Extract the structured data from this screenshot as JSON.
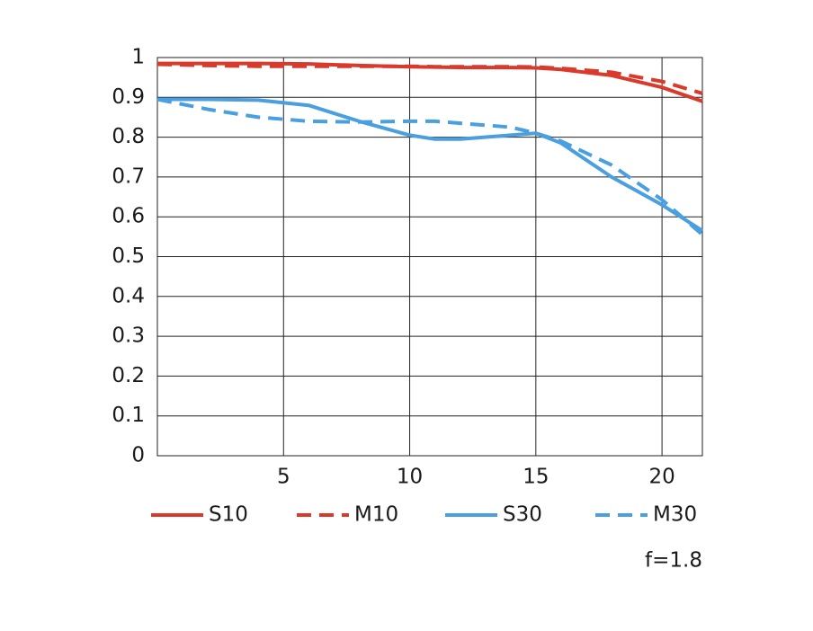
{
  "chart_data": {
    "type": "line",
    "x": [
      0,
      2,
      4,
      6,
      8,
      10,
      11,
      12,
      14,
      15,
      16,
      18,
      20,
      21.6
    ],
    "series": [
      {
        "name": "S10",
        "color": "#d93a2b",
        "linestyle": "solid",
        "values": [
          0.985,
          0.985,
          0.985,
          0.984,
          0.98,
          0.977,
          0.976,
          0.975,
          0.975,
          0.974,
          0.97,
          0.955,
          0.925,
          0.89
        ]
      },
      {
        "name": "M10",
        "color": "#d93a2b",
        "linestyle": "dashed",
        "values": [
          0.983,
          0.98,
          0.978,
          0.978,
          0.978,
          0.978,
          0.977,
          0.977,
          0.977,
          0.976,
          0.973,
          0.963,
          0.94,
          0.91
        ]
      },
      {
        "name": "S30",
        "color": "#4a9fe0",
        "linestyle": "solid",
        "values": [
          0.895,
          0.895,
          0.893,
          0.88,
          0.84,
          0.805,
          0.795,
          0.795,
          0.805,
          0.81,
          0.785,
          0.7,
          0.63,
          0.565
        ]
      },
      {
        "name": "M30",
        "color": "#4a9fe0",
        "linestyle": "dashed",
        "values": [
          0.895,
          0.87,
          0.85,
          0.84,
          0.838,
          0.84,
          0.84,
          0.835,
          0.825,
          0.81,
          0.79,
          0.73,
          0.643,
          0.555
        ]
      }
    ],
    "xlim": [
      0,
      21.6
    ],
    "xticks": [
      5,
      10,
      15,
      20
    ],
    "ylim": [
      0,
      1
    ],
    "yticks": [
      0,
      0.1,
      0.2,
      0.3,
      0.4,
      0.5,
      0.6,
      0.7,
      0.8,
      0.9,
      1
    ],
    "grid": true,
    "annotation": "f=1.8"
  }
}
